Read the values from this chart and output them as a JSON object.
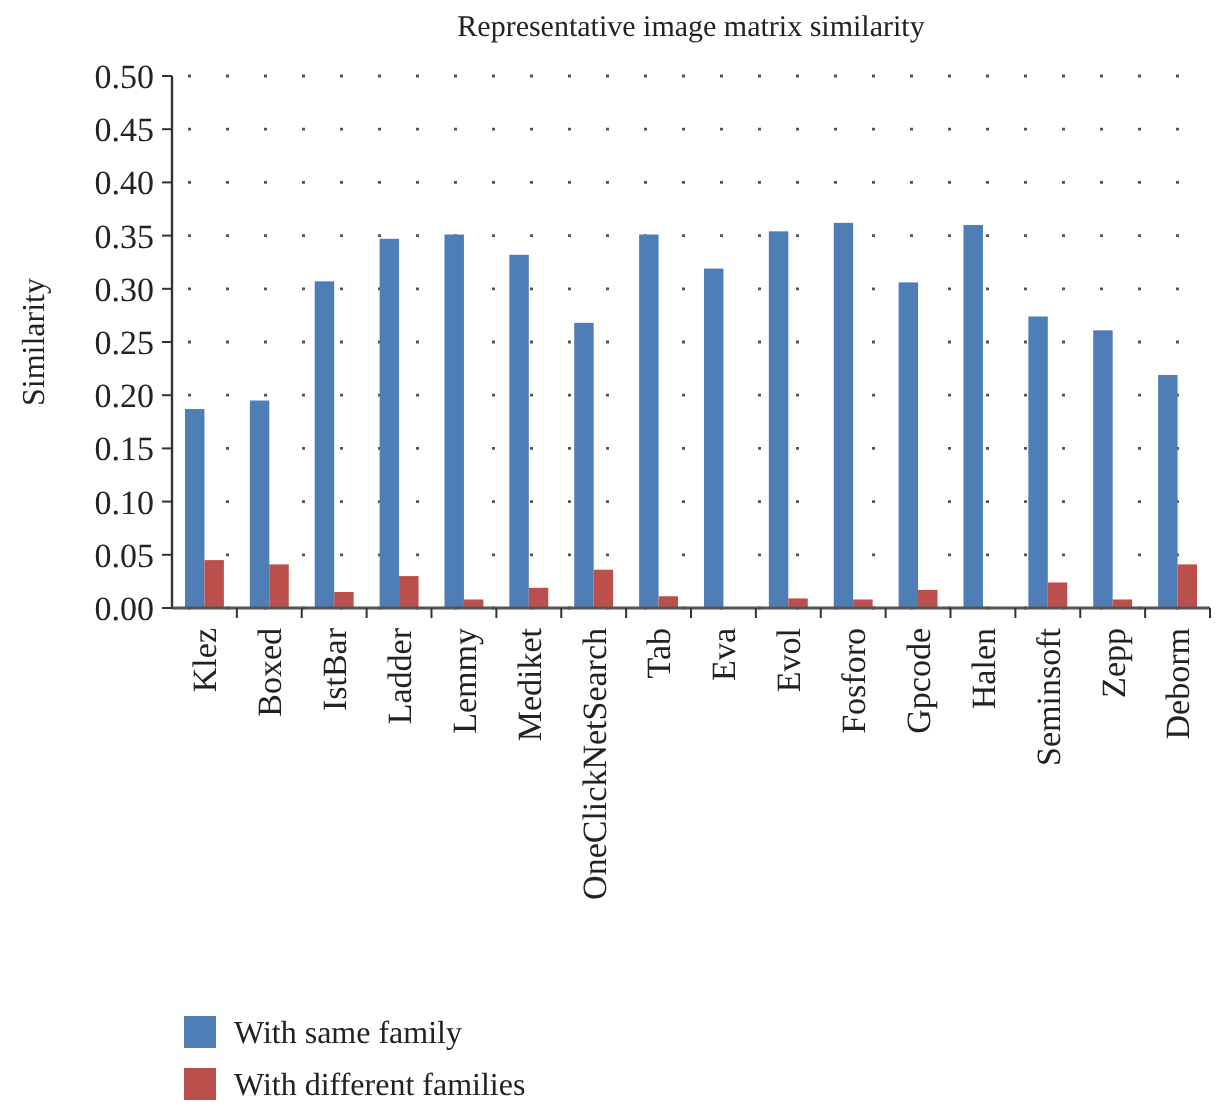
{
  "chart_data": {
    "type": "bar",
    "title": "Representative image matrix similarity",
    "ylabel": "Similarity",
    "categories": [
      "Klez",
      "Boxed",
      "IstBar",
      "Ladder",
      "Lemmy",
      "Mediket",
      "OneClickNetSearch",
      "Tab",
      "Eva",
      "Evol",
      "Fosforo",
      "Gpcode",
      "Halen",
      "Seminsoft",
      "Zepp",
      "Deborm"
    ],
    "series": [
      {
        "name": "With same family",
        "color": "#4f7db5",
        "values": [
          0.187,
          0.195,
          0.307,
          0.347,
          0.351,
          0.332,
          0.268,
          0.351,
          0.319,
          0.354,
          0.362,
          0.306,
          0.36,
          0.274,
          0.261,
          0.219
        ]
      },
      {
        "name": "With different families",
        "color": "#bb4f4c",
        "values": [
          0.045,
          0.041,
          0.015,
          0.03,
          0.008,
          0.019,
          0.036,
          0.011,
          null,
          0.009,
          0.008,
          0.017,
          null,
          0.024,
          0.008,
          0.041
        ]
      }
    ],
    "ylim": [
      0,
      0.5
    ],
    "yticks": [
      {
        "value": 0,
        "label": "0.00"
      },
      {
        "value": 0.05,
        "label": "0.05"
      },
      {
        "value": 0.1,
        "label": "0.10"
      },
      {
        "value": 0.15,
        "label": "0.15"
      },
      {
        "value": 0.2,
        "label": "0.20"
      },
      {
        "value": 0.25,
        "label": "0.25"
      },
      {
        "value": 0.3,
        "label": "0.30"
      },
      {
        "value": 0.35,
        "label": "0.35"
      },
      {
        "value": 0.4,
        "label": "0.40"
      },
      {
        "value": 0.45,
        "label": "0.45"
      },
      {
        "value": 0.5,
        "label": "0.50"
      }
    ],
    "grid": "y",
    "legend": "bottom"
  }
}
